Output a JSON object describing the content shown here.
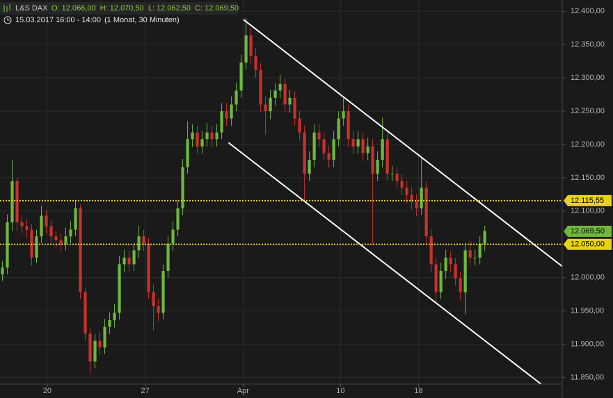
{
  "chart_data": {
    "type": "candlestick",
    "header": {
      "symbol": "L&S DAX",
      "quote": "O: 12.066,00  H: 12.070,50  L: 12.062,50  C: 12.069,50",
      "period": "15.03.2017 16:00 - 14:00",
      "range": "(1 Monat, 30 Minuten)"
    },
    "xlim": [
      -0.5,
      114.9
    ],
    "xticks": [
      {
        "value": 9.2,
        "label": "20"
      },
      {
        "value": 29.3,
        "label": "27"
      },
      {
        "value": 49.4,
        "label": "Apr"
      },
      {
        "value": 69.4,
        "label": "10"
      },
      {
        "value": 85.4,
        "label": "18"
      }
    ],
    "ylim": [
      11840,
      12417
    ],
    "yticks": [
      {
        "value": 11850,
        "label": "11.850,00"
      },
      {
        "value": 11900,
        "label": "11.900,00"
      },
      {
        "value": 11950,
        "label": "11.950,00"
      },
      {
        "value": 12000,
        "label": "12.000,00"
      },
      {
        "value": 12050,
        "label": "12.050,00"
      },
      {
        "value": 12100,
        "label": "12.100,00"
      },
      {
        "value": 12150,
        "label": "12.150,00"
      },
      {
        "value": 12200,
        "label": "12.200,00"
      },
      {
        "value": 12250,
        "label": "12.250,00"
      },
      {
        "value": 12300,
        "label": "12.300,00"
      },
      {
        "value": 12350,
        "label": "12.350,00"
      },
      {
        "value": 12400,
        "label": "12.400,00"
      }
    ],
    "grid": true,
    "up_color": "#6fb83c",
    "down_color": "#c8322b",
    "open": [
      12005,
      12015,
      12083,
      12145,
      12083,
      12077,
      12072,
      12030,
      12062,
      12093,
      12077,
      12062,
      12056,
      12051,
      12062,
      12072,
      12104,
      11978,
      11916,
      11874,
      11905,
      11895,
      11926,
      11936,
      11947,
      12020,
      12030,
      12020,
      12041,
      12062,
      12051,
      11978,
      11957,
      11947,
      12010,
      12051,
      12072,
      12104,
      12166,
      12208,
      12218,
      12197,
      12208,
      12218,
      12208,
      12218,
      12250,
      12239,
      12260,
      12281,
      12323,
      12364,
      12333,
      12312,
      12260,
      12250,
      12270,
      12281,
      12291,
      12260,
      12270,
      12239,
      12218,
      12156,
      12177,
      12218,
      12208,
      12187,
      12177,
      12208,
      12239,
      12250,
      12208,
      12197,
      12208,
      12187,
      12197,
      12156,
      12177,
      12208,
      12156,
      12156,
      12145,
      12135,
      12124,
      12114,
      12104,
      12135,
      12062,
      12020,
      11978,
      12010,
      12030,
      12020,
      11999,
      11978,
      12041,
      12030,
      12030,
      12051
    ],
    "high": [
      12025,
      12095,
      12177,
      12150,
      12092,
      12088,
      12080,
      12072,
      12108,
      12100,
      12086,
      12070,
      12066,
      12075,
      12085,
      12115,
      12110,
      11985,
      11925,
      11915,
      11918,
      11938,
      11948,
      11960,
      12032,
      12042,
      12040,
      12052,
      12078,
      12072,
      12060,
      11990,
      11968,
      12020,
      12062,
      12085,
      12115,
      12178,
      12235,
      12230,
      12228,
      12220,
      12232,
      12228,
      12230,
      12262,
      12262,
      12272,
      12293,
      12335,
      12390,
      12375,
      12345,
      12322,
      12272,
      12282,
      12292,
      12305,
      12300,
      12282,
      12280,
      12250,
      12228,
      12190,
      12230,
      12230,
      12218,
      12198,
      12220,
      12250,
      12270,
      12260,
      12220,
      12220,
      12218,
      12210,
      12208,
      12190,
      12240,
      12218,
      12168,
      12166,
      12156,
      12146,
      12136,
      12126,
      12180,
      12145,
      12072,
      12030,
      12022,
      12042,
      12040,
      12030,
      12008,
      12052,
      12055,
      12042,
      12062,
      12078
    ],
    "low": [
      11995,
      12005,
      12070,
      12070,
      12066,
      12060,
      12018,
      12022,
      12052,
      12066,
      12050,
      12045,
      12040,
      12041,
      12052,
      12062,
      11968,
      11905,
      11855,
      11864,
      11884,
      11885,
      11915,
      11925,
      11937,
      12008,
      12008,
      12010,
      12030,
      12040,
      11968,
      11920,
      11935,
      11937,
      12000,
      12040,
      12062,
      12094,
      12156,
      12196,
      12186,
      12186,
      12197,
      12196,
      12197,
      12208,
      12228,
      12228,
      12250,
      12270,
      12312,
      12322,
      12300,
      12248,
      12215,
      12238,
      12258,
      12270,
      12248,
      12248,
      12228,
      12206,
      12115,
      12145,
      12166,
      12196,
      12176,
      12165,
      12166,
      12197,
      12228,
      12196,
      12186,
      12186,
      12176,
      12176,
      12050,
      12145,
      12166,
      12145,
      12145,
      12134,
      12124,
      12112,
      12102,
      12092,
      12094,
      12050,
      12008,
      11960,
      11968,
      11998,
      12008,
      11988,
      11966,
      11945,
      12018,
      12018,
      12020,
      12040
    ],
    "close": [
      12015,
      12083,
      12145,
      12083,
      12077,
      12072,
      12030,
      12062,
      12093,
      12077,
      12062,
      12056,
      12051,
      12062,
      12072,
      12104,
      11978,
      11916,
      11874,
      11905,
      11895,
      11926,
      11936,
      11947,
      12020,
      12030,
      12020,
      12041,
      12062,
      12051,
      11978,
      11957,
      11947,
      12010,
      12051,
      12072,
      12104,
      12166,
      12208,
      12218,
      12197,
      12208,
      12218,
      12208,
      12218,
      12250,
      12239,
      12260,
      12281,
      12323,
      12364,
      12333,
      12312,
      12260,
      12250,
      12270,
      12281,
      12291,
      12260,
      12270,
      12239,
      12218,
      12156,
      12177,
      12218,
      12208,
      12187,
      12177,
      12208,
      12239,
      12250,
      12208,
      12197,
      12208,
      12187,
      12197,
      12156,
      12177,
      12208,
      12156,
      12156,
      12145,
      12135,
      12124,
      12114,
      12104,
      12135,
      12062,
      12020,
      11978,
      12010,
      12030,
      12020,
      11999,
      11978,
      12041,
      12030,
      12030,
      12051,
      12070
    ],
    "trendlines": [
      [
        49.5,
        12387.5,
        114.9,
        12016.9
      ],
      [
        46.4,
        12202.7,
        113.8,
        11821.7
      ]
    ],
    "levels": [
      {
        "value": 12115.55,
        "label": "12.115,55"
      },
      {
        "value": 12050,
        "label": "12.050,00"
      }
    ],
    "level_color": "#e8d21a",
    "last": {
      "value": 12069.5,
      "label": "12.069,50",
      "color": "#6fb83c"
    }
  }
}
